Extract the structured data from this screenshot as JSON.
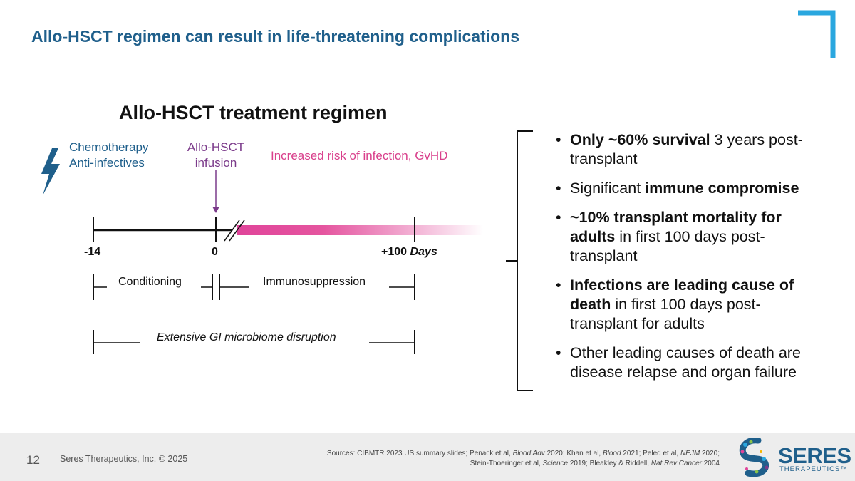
{
  "title": "Allo-HSCT regimen can result in life-threatening complications",
  "diagram": {
    "subtitle": "Allo-HSCT treatment regimen",
    "chemo_line1": "Chemotherapy",
    "chemo_line2": "Anti-infectives",
    "infusion_line1": "Allo-HSCT",
    "infusion_line2": "infusion",
    "risk_label": "Increased risk of infection, GvHD",
    "tick_minus14": "-14",
    "tick_zero": "0",
    "tick_plus100": "+100",
    "days_label": "Days",
    "conditioning": "Conditioning",
    "immunosuppression": "Immunosuppression",
    "gi_disruption": "Extensive GI microbiome disruption",
    "colors": {
      "blue": "#1f5f8b",
      "purple": "#7b3a8a",
      "pink": "#e0449a"
    },
    "icons": [
      "lightning-bolt-icon",
      "down-arrow-icon",
      "axis-break-icon"
    ]
  },
  "bullets": [
    {
      "bold1": "Only ~60% survival",
      "text1": " 3 years post-transplant",
      "bold2": "",
      "text2": ""
    },
    {
      "bold1": "",
      "text1": "Significant ",
      "bold2": "immune compromise",
      "text2": ""
    },
    {
      "bold1": "~10% transplant mortality for adults",
      "text1": " in first 100 days post-transplant",
      "bold2": "",
      "text2": ""
    },
    {
      "bold1": "Infections are leading cause of death",
      "text1": " in first 100 days post-transplant for adults",
      "bold2": "",
      "text2": ""
    },
    {
      "bold1": "",
      "text1": "Other leading causes of death are disease relapse and organ failure",
      "bold2": "",
      "text2": ""
    }
  ],
  "footer": {
    "page_number": "12",
    "copyright": "Seres Therapeutics, Inc. © 2025",
    "sources_prefix": "Sources:  CIBMTR 2023 US summary slides; Penack et al, ",
    "src_j1": "Blood Adv",
    "src_t1": " 2020; Khan et al, ",
    "src_j2": "Blood",
    "src_t2": " 2021; Peled et al, ",
    "src_j3": "NEJM",
    "src_t3": " 2020;",
    "src_line2a": "Stein-Thoeringer et al, ",
    "src_j4": "Science",
    "src_t4": " 2019; Bleakley & Riddell, ",
    "src_j5": "Nat Rev Cancer",
    "src_t5": " 2004",
    "logo_name": "SERES",
    "logo_sub": "THERAPEUTICS™"
  }
}
